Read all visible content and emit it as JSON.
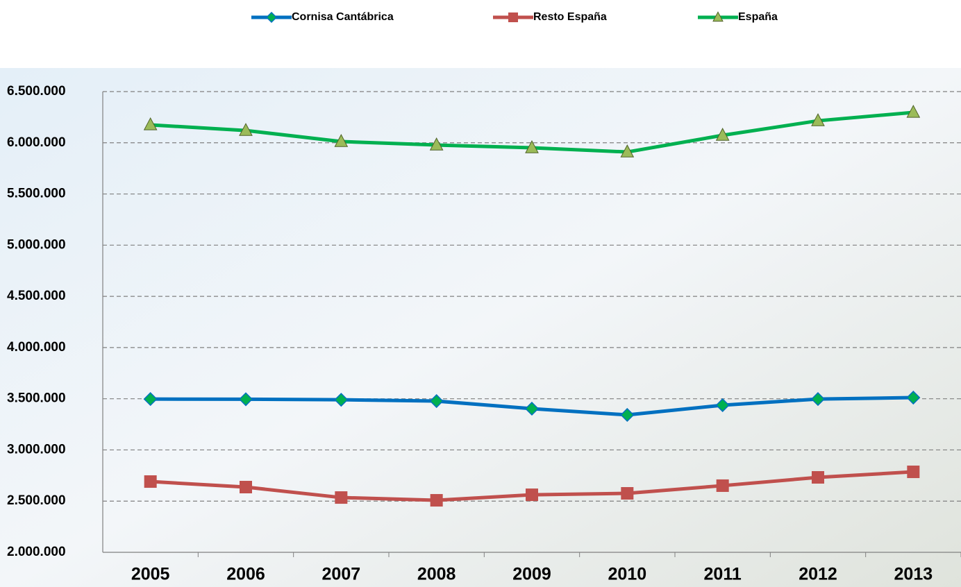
{
  "chart_data": {
    "type": "line",
    "categories": [
      "2005",
      "2006",
      "2007",
      "2008",
      "2009",
      "2010",
      "2011",
      "2012",
      "2013"
    ],
    "series": [
      {
        "name": "Cornisa Cantábrica",
        "color": "#0070c0",
        "marker": "diamond",
        "values": [
          3497000,
          3495000,
          3490000,
          3477000,
          3403000,
          3342000,
          3437000,
          3497000,
          3511000
        ]
      },
      {
        "name": "Resto España",
        "color": "#c0504d",
        "marker": "square",
        "values": [
          2691000,
          2637000,
          2535000,
          2508000,
          2562000,
          2576000,
          2651000,
          2732000,
          2786000
        ]
      },
      {
        "name": "España",
        "color": "#00b050",
        "marker": "triangle",
        "values": [
          6175000,
          6120000,
          6012000,
          5978000,
          5951000,
          5910000,
          6073000,
          6215000,
          6297000
        ]
      }
    ],
    "ylim": [
      2000000,
      6500000
    ],
    "yticks": [
      {
        "value": 2000000,
        "label": "2.000.000"
      },
      {
        "value": 2500000,
        "label": "2.500.000"
      },
      {
        "value": 3000000,
        "label": "3.000.000"
      },
      {
        "value": 3500000,
        "label": "3.500.000"
      },
      {
        "value": 4000000,
        "label": "4.000.000"
      },
      {
        "value": 4500000,
        "label": "4.500.000"
      },
      {
        "value": 5000000,
        "label": "5.000.000"
      },
      {
        "value": 5500000,
        "label": "5.500.000"
      },
      {
        "value": 6000000,
        "label": "6.000.000"
      },
      {
        "value": 6500000,
        "label": "6.500.000"
      }
    ],
    "grid": true,
    "legend": "top"
  }
}
